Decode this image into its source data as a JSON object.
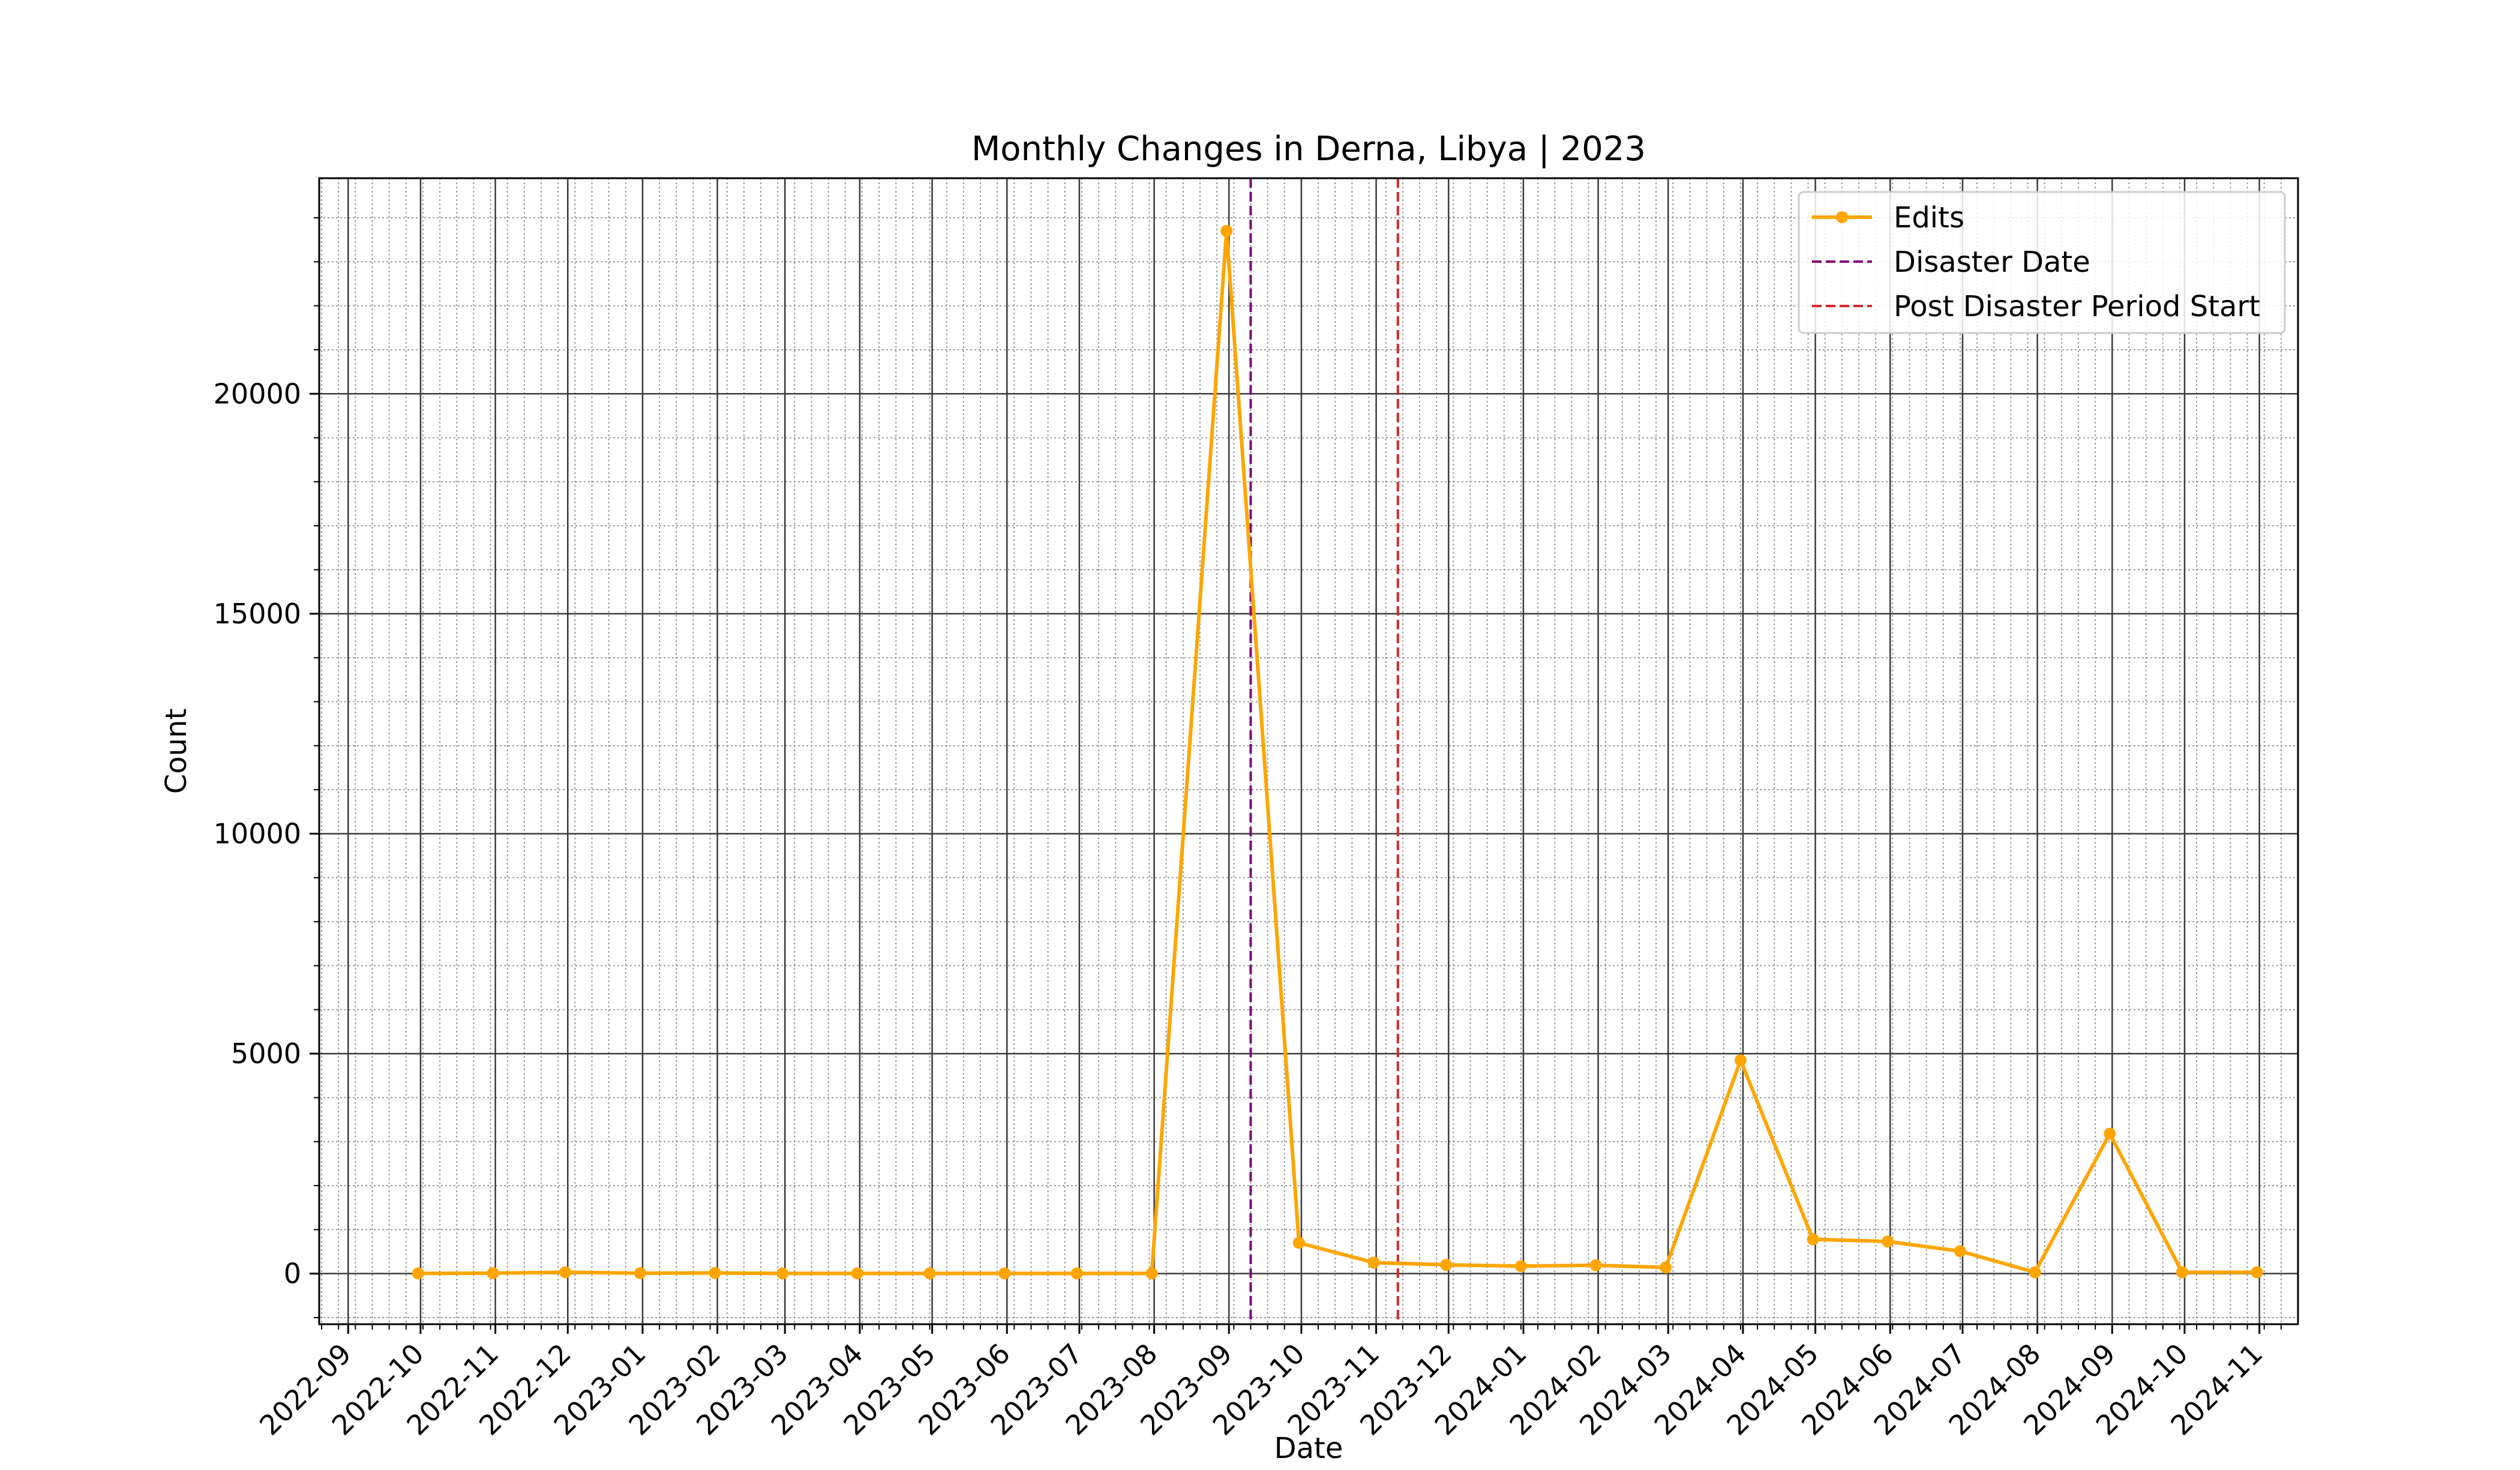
{
  "chart_data": {
    "type": "line",
    "title": "Monthly Changes in Derna, Libya | 2023",
    "xlabel": "Date",
    "ylabel": "Count",
    "x_range": [
      "2022-08-20",
      "2024-11-17"
    ],
    "ylim": [
      -1150,
      24900
    ],
    "x_ticks": [
      "2022-09",
      "2022-10",
      "2022-11",
      "2022-12",
      "2023-01",
      "2023-02",
      "2023-03",
      "2023-04",
      "2023-05",
      "2023-06",
      "2023-07",
      "2023-08",
      "2023-09",
      "2023-10",
      "2023-11",
      "2023-12",
      "2024-01",
      "2024-02",
      "2024-03",
      "2024-04",
      "2024-05",
      "2024-06",
      "2024-07",
      "2024-08",
      "2024-09",
      "2024-10",
      "2024-11"
    ],
    "y_ticks": [
      0,
      5000,
      10000,
      15000,
      20000
    ],
    "y_tick_labels": [
      "0",
      "5000",
      "10000",
      "15000",
      "20000"
    ],
    "grid": "major solid, minor dotted",
    "legend_position": "top-right",
    "series": [
      {
        "name": "Edits",
        "color": "#ffa500",
        "x": [
          "2022-09-30",
          "2022-10-31",
          "2022-11-30",
          "2022-12-31",
          "2023-01-31",
          "2023-02-28",
          "2023-03-31",
          "2023-04-30",
          "2023-05-31",
          "2023-06-30",
          "2023-07-31",
          "2023-08-31",
          "2023-09-30",
          "2023-10-31",
          "2023-11-30",
          "2023-12-31",
          "2024-01-31",
          "2024-02-29",
          "2024-03-31",
          "2024-04-30",
          "2024-05-31",
          "2024-06-30",
          "2024-07-31",
          "2024-08-31",
          "2024-09-30",
          "2024-10-31"
        ],
        "values": [
          5,
          10,
          30,
          10,
          15,
          5,
          5,
          5,
          5,
          5,
          5,
          23700,
          700,
          250,
          200,
          170,
          190,
          140,
          4850,
          780,
          730,
          510,
          30,
          3180,
          30,
          30
        ]
      }
    ],
    "vlines": [
      {
        "name": "Disaster Date",
        "x": "2023-09-10",
        "color": "#800080"
      },
      {
        "name": "Post Disaster Period Start",
        "x": "2023-11-10",
        "color": "#d62728"
      }
    ]
  }
}
